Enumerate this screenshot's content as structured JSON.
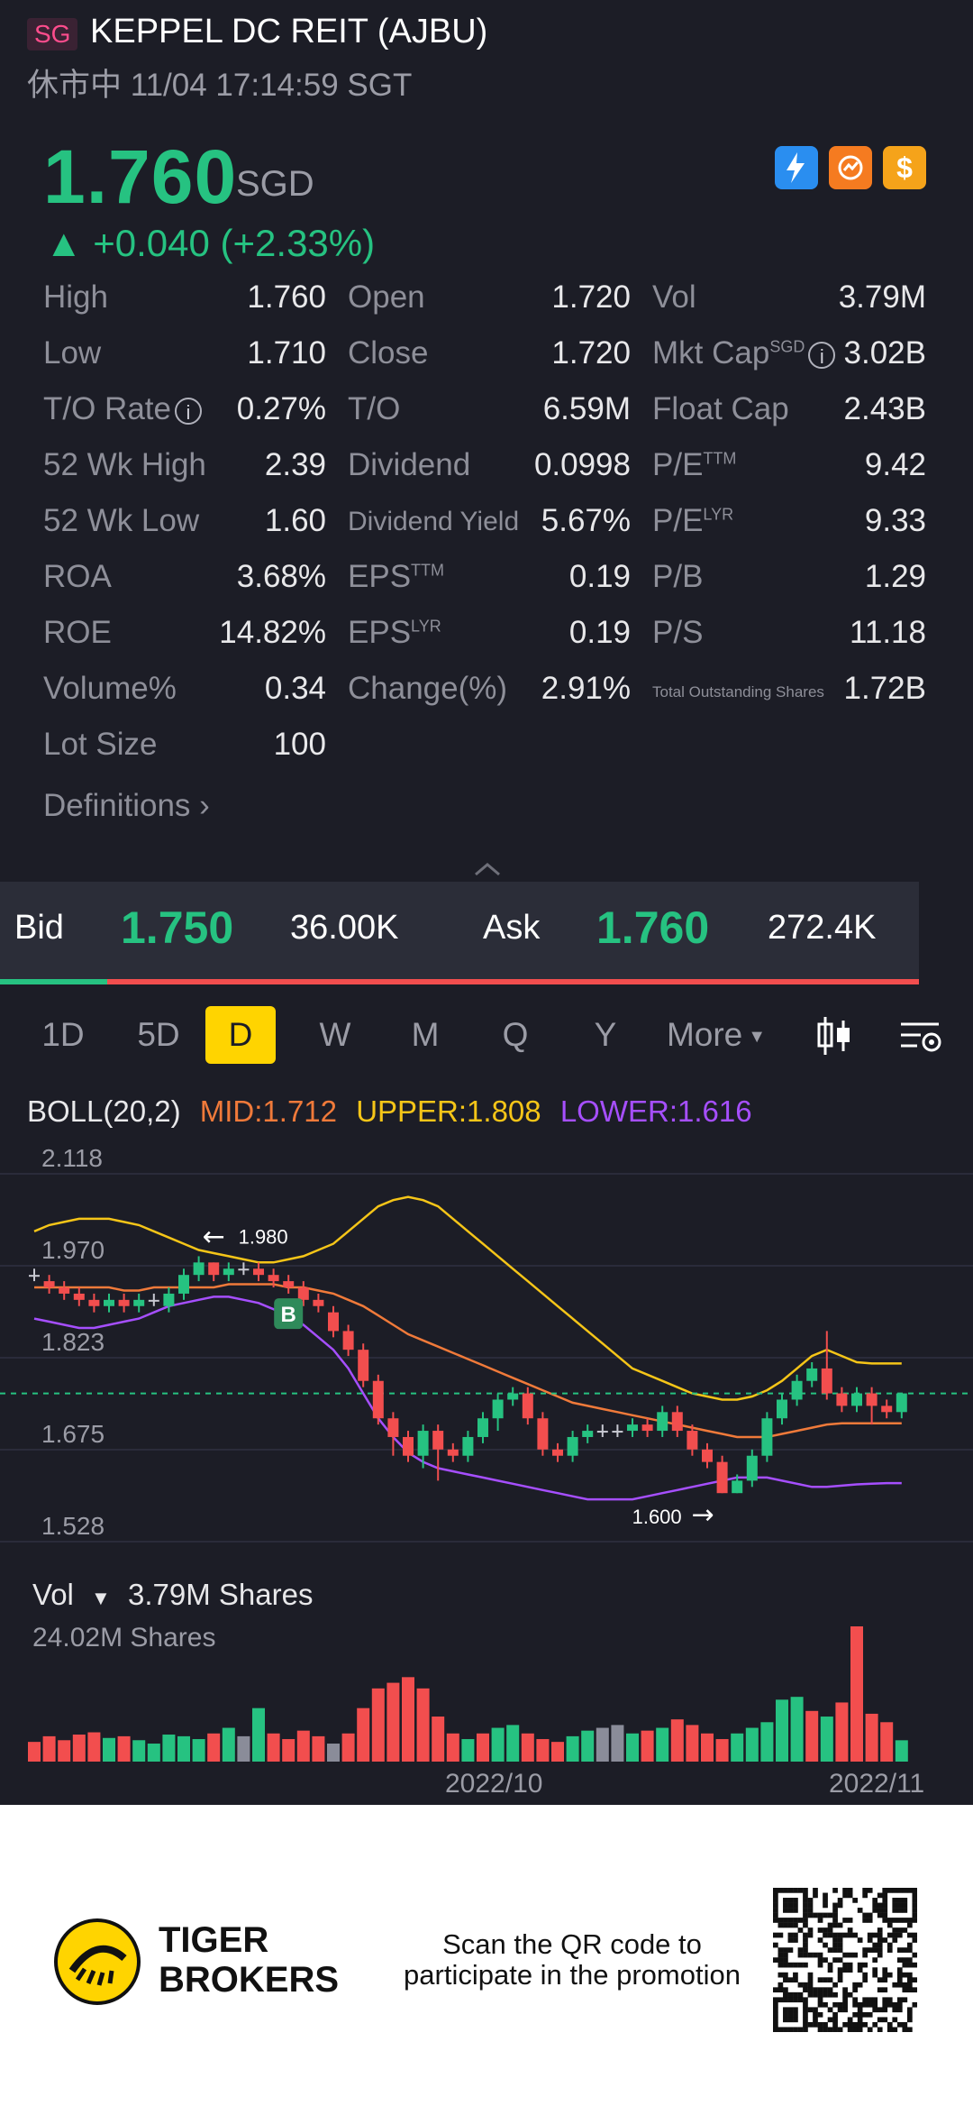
{
  "header": {
    "market": "SG",
    "title": "KEPPEL DC REIT (AJBU)",
    "status": "休市中 11/04 17:14:59 SGT"
  },
  "quote": {
    "price": "1.760",
    "currency": "SGD",
    "change": "▲ +0.040 (+2.33%)",
    "badges": [
      "lightning-1-icon",
      "refresh-badge-icon",
      "dollar-badge-icon"
    ]
  },
  "stats": [
    [
      {
        "label": "High",
        "value": "1.760"
      },
      {
        "label": "Open",
        "value": "1.720"
      },
      {
        "label": "Vol",
        "value": "3.79M"
      }
    ],
    [
      {
        "label": "Low",
        "value": "1.710"
      },
      {
        "label": "Close",
        "value": "1.720"
      },
      {
        "label": "Mkt Cap",
        "sup": "SGD",
        "info": true,
        "value": "3.02B"
      }
    ],
    [
      {
        "label": "T/O Rate",
        "info": true,
        "value": "0.27%"
      },
      {
        "label": "T/O",
        "value": "6.59M"
      },
      {
        "label": "Float Cap",
        "value": "2.43B"
      }
    ],
    [
      {
        "label": "52 Wk High",
        "value": "2.39"
      },
      {
        "label": "Dividend",
        "value": "0.0998"
      },
      {
        "label": "P/E",
        "sup": "TTM",
        "value": "9.42"
      }
    ],
    [
      {
        "label": "52 Wk Low",
        "value": "1.60"
      },
      {
        "label": "Dividend Yield",
        "value": "5.67%"
      },
      {
        "label": "P/E",
        "sup": "LYR",
        "value": "9.33"
      }
    ],
    [
      {
        "label": "ROA",
        "value": "3.68%"
      },
      {
        "label": "EPS",
        "sup": "TTM",
        "value": "0.19"
      },
      {
        "label": "P/B",
        "value": "1.29"
      }
    ],
    [
      {
        "label": "ROE",
        "value": "14.82%"
      },
      {
        "label": "EPS",
        "sup": "LYR",
        "value": "0.19"
      },
      {
        "label": "P/S",
        "value": "11.18"
      }
    ],
    [
      {
        "label": "Volume%",
        "value": "0.34"
      },
      {
        "label": "Change(%)",
        "value": "2.91%"
      },
      {
        "label": "Total Outstanding Shares",
        "value": "1.72B"
      }
    ],
    [
      {
        "label": "Lot Size",
        "value": "100"
      }
    ]
  ],
  "definitions_label": "Definitions",
  "bid_ask": {
    "bid_label": "Bid",
    "bid_price": "1.750",
    "bid_size": "36.00K",
    "ask_label": "Ask",
    "ask_price": "1.760",
    "ask_size": "272.4K",
    "bid_fraction": 0.117
  },
  "tabs": [
    "1D",
    "5D",
    "D",
    "W",
    "M",
    "Q",
    "Y",
    "More"
  ],
  "active_tab": "D",
  "indicator": {
    "name": "BOLL(20,2)",
    "mid": "MID:1.712",
    "upper": "UPPER:1.808",
    "lower": "LOWER:1.616"
  },
  "colors": {
    "up": "#26c281",
    "down": "#f24e4e",
    "neutral": "#8a8c99",
    "mid": "#f07a3a",
    "upper": "#f5c518",
    "lower": "#a64fff",
    "accent": "#ffd400"
  },
  "chart_data": {
    "type": "candlestick",
    "y_ticks": [
      "2.118",
      "1.970",
      "1.823",
      "1.675",
      "1.528"
    ],
    "ylim": [
      1.528,
      2.118
    ],
    "annotations": {
      "high": "1.980",
      "low": "1.600",
      "buy_marker": "B"
    },
    "last_price": 1.76,
    "candles": [
      [
        1.95,
        1.95,
        1.96,
        1.94
      ],
      [
        1.94,
        1.93,
        1.95,
        1.92
      ],
      [
        1.93,
        1.92,
        1.94,
        1.91
      ],
      [
        1.92,
        1.91,
        1.93,
        1.9
      ],
      [
        1.91,
        1.9,
        1.92,
        1.89
      ],
      [
        1.9,
        1.91,
        1.92,
        1.89
      ],
      [
        1.91,
        1.9,
        1.92,
        1.89
      ],
      [
        1.9,
        1.91,
        1.92,
        1.89
      ],
      [
        1.91,
        1.91,
        1.92,
        1.9
      ],
      [
        1.9,
        1.92,
        1.93,
        1.89
      ],
      [
        1.92,
        1.95,
        1.96,
        1.91
      ],
      [
        1.95,
        1.97,
        1.98,
        1.94
      ],
      [
        1.97,
        1.95,
        1.97,
        1.94
      ],
      [
        1.95,
        1.96,
        1.97,
        1.94
      ],
      [
        1.96,
        1.96,
        1.97,
        1.95
      ],
      [
        1.96,
        1.95,
        1.97,
        1.94
      ],
      [
        1.95,
        1.94,
        1.96,
        1.93
      ],
      [
        1.94,
        1.93,
        1.95,
        1.92
      ],
      [
        1.93,
        1.91,
        1.94,
        1.9
      ],
      [
        1.91,
        1.9,
        1.92,
        1.89
      ],
      [
        1.89,
        1.86,
        1.9,
        1.85
      ],
      [
        1.86,
        1.83,
        1.87,
        1.82
      ],
      [
        1.83,
        1.78,
        1.84,
        1.77
      ],
      [
        1.78,
        1.72,
        1.79,
        1.71
      ],
      [
        1.72,
        1.69,
        1.73,
        1.66
      ],
      [
        1.69,
        1.66,
        1.7,
        1.65
      ],
      [
        1.66,
        1.7,
        1.71,
        1.64
      ],
      [
        1.7,
        1.67,
        1.71,
        1.62
      ],
      [
        1.67,
        1.66,
        1.68,
        1.65
      ],
      [
        1.66,
        1.69,
        1.7,
        1.65
      ],
      [
        1.69,
        1.72,
        1.73,
        1.68
      ],
      [
        1.72,
        1.75,
        1.76,
        1.7
      ],
      [
        1.75,
        1.76,
        1.77,
        1.74
      ],
      [
        1.76,
        1.72,
        1.77,
        1.71
      ],
      [
        1.72,
        1.67,
        1.73,
        1.66
      ],
      [
        1.67,
        1.66,
        1.68,
        1.65
      ],
      [
        1.66,
        1.69,
        1.7,
        1.65
      ],
      [
        1.69,
        1.7,
        1.71,
        1.68
      ],
      [
        1.7,
        1.7,
        1.71,
        1.69
      ],
      [
        1.7,
        1.7,
        1.71,
        1.69
      ],
      [
        1.7,
        1.71,
        1.72,
        1.69
      ],
      [
        1.71,
        1.7,
        1.72,
        1.69
      ],
      [
        1.7,
        1.73,
        1.74,
        1.69
      ],
      [
        1.73,
        1.7,
        1.74,
        1.69
      ],
      [
        1.7,
        1.67,
        1.71,
        1.66
      ],
      [
        1.67,
        1.65,
        1.68,
        1.64
      ],
      [
        1.65,
        1.6,
        1.66,
        1.6
      ],
      [
        1.6,
        1.62,
        1.63,
        1.6
      ],
      [
        1.62,
        1.66,
        1.67,
        1.61
      ],
      [
        1.66,
        1.72,
        1.73,
        1.65
      ],
      [
        1.72,
        1.75,
        1.76,
        1.71
      ],
      [
        1.75,
        1.78,
        1.79,
        1.74
      ],
      [
        1.78,
        1.8,
        1.81,
        1.77
      ],
      [
        1.8,
        1.76,
        1.86,
        1.75
      ],
      [
        1.76,
        1.74,
        1.77,
        1.73
      ],
      [
        1.74,
        1.76,
        1.77,
        1.73
      ],
      [
        1.76,
        1.74,
        1.77,
        1.71
      ],
      [
        1.74,
        1.73,
        1.75,
        1.72
      ],
      [
        1.73,
        1.76,
        1.76,
        1.72
      ]
    ],
    "boll_mid": [
      1.93,
      1.93,
      1.93,
      1.93,
      1.93,
      1.93,
      1.925,
      1.925,
      1.93,
      1.93,
      1.93,
      1.93,
      1.93,
      1.935,
      1.935,
      1.935,
      1.935,
      1.93,
      1.93,
      1.925,
      1.92,
      1.91,
      1.9,
      1.885,
      1.87,
      1.855,
      1.845,
      1.835,
      1.825,
      1.815,
      1.805,
      1.795,
      1.785,
      1.775,
      1.765,
      1.755,
      1.745,
      1.74,
      1.735,
      1.73,
      1.725,
      1.72,
      1.715,
      1.71,
      1.705,
      1.7,
      1.695,
      1.69,
      1.69,
      1.69,
      1.695,
      1.7,
      1.705,
      1.71,
      1.712,
      1.712,
      1.712,
      1.712,
      1.712
    ],
    "boll_upper": [
      2.02,
      2.03,
      2.035,
      2.04,
      2.04,
      2.04,
      2.035,
      2.03,
      2.02,
      2.01,
      2.0,
      1.99,
      1.985,
      1.98,
      1.975,
      1.97,
      1.97,
      1.975,
      1.98,
      1.99,
      2.0,
      2.02,
      2.04,
      2.06,
      2.07,
      2.075,
      2.07,
      2.06,
      2.04,
      2.02,
      2.0,
      1.98,
      1.96,
      1.94,
      1.92,
      1.9,
      1.88,
      1.86,
      1.84,
      1.82,
      1.8,
      1.79,
      1.78,
      1.77,
      1.76,
      1.755,
      1.75,
      1.75,
      1.755,
      1.765,
      1.78,
      1.8,
      1.82,
      1.83,
      1.82,
      1.81,
      1.808,
      1.808,
      1.808
    ],
    "boll_lower": [
      1.88,
      1.875,
      1.87,
      1.865,
      1.865,
      1.87,
      1.875,
      1.88,
      1.89,
      1.9,
      1.905,
      1.91,
      1.915,
      1.915,
      1.91,
      1.905,
      1.895,
      1.885,
      1.87,
      1.85,
      1.83,
      1.8,
      1.76,
      1.72,
      1.69,
      1.665,
      1.65,
      1.64,
      1.635,
      1.63,
      1.625,
      1.62,
      1.615,
      1.61,
      1.605,
      1.6,
      1.595,
      1.59,
      1.59,
      1.59,
      1.59,
      1.595,
      1.6,
      1.605,
      1.61,
      1.615,
      1.62,
      1.625,
      1.625,
      1.625,
      1.62,
      1.615,
      1.61,
      1.61,
      1.612,
      1.614,
      1.615,
      1.616,
      1.616
    ],
    "volume_label": "Vol",
    "volume_current": "3.79M Shares",
    "volume_max_label": "24.02M Shares",
    "volume_max": 24.02,
    "volumes": [
      3.5,
      4.5,
      3.8,
      4.8,
      5.2,
      4.2,
      4.5,
      3.8,
      3.2,
      4.8,
      4.5,
      4.0,
      5.0,
      6.0,
      4.5,
      9.5,
      5.0,
      4.0,
      5.5,
      4.5,
      3.2,
      5.0,
      9.5,
      13.0,
      14.0,
      15.0,
      13.0,
      8.0,
      5.0,
      4.0,
      5.0,
      6.0,
      6.5,
      5.0,
      4.0,
      3.5,
      4.5,
      5.5,
      6.0,
      6.5,
      5.0,
      5.5,
      6.0,
      7.5,
      6.5,
      5.0,
      4.0,
      5.0,
      6.0,
      7.0,
      11.0,
      11.5,
      9.0,
      8.0,
      10.5,
      24.02,
      8.5,
      7.0,
      3.79
    ],
    "volume_dirs": [
      "d",
      "d",
      "d",
      "d",
      "d",
      "u",
      "d",
      "u",
      "u",
      "u",
      "u",
      "u",
      "d",
      "u",
      "n",
      "u",
      "d",
      "d",
      "d",
      "d",
      "n",
      "d",
      "d",
      "d",
      "d",
      "d",
      "d",
      "d",
      "d",
      "u",
      "d",
      "u",
      "u",
      "d",
      "d",
      "d",
      "u",
      "u",
      "n",
      "n",
      "u",
      "d",
      "u",
      "d",
      "d",
      "d",
      "d",
      "u",
      "u",
      "u",
      "u",
      "u",
      "d",
      "u",
      "d",
      "d",
      "d",
      "d",
      "u"
    ],
    "x_labels": [
      "2022/10",
      "2022/11"
    ]
  },
  "footer": {
    "brand_line1": "TIGER",
    "brand_line2": "BROKERS",
    "promo": "Scan the QR code to participate in the promotion"
  }
}
